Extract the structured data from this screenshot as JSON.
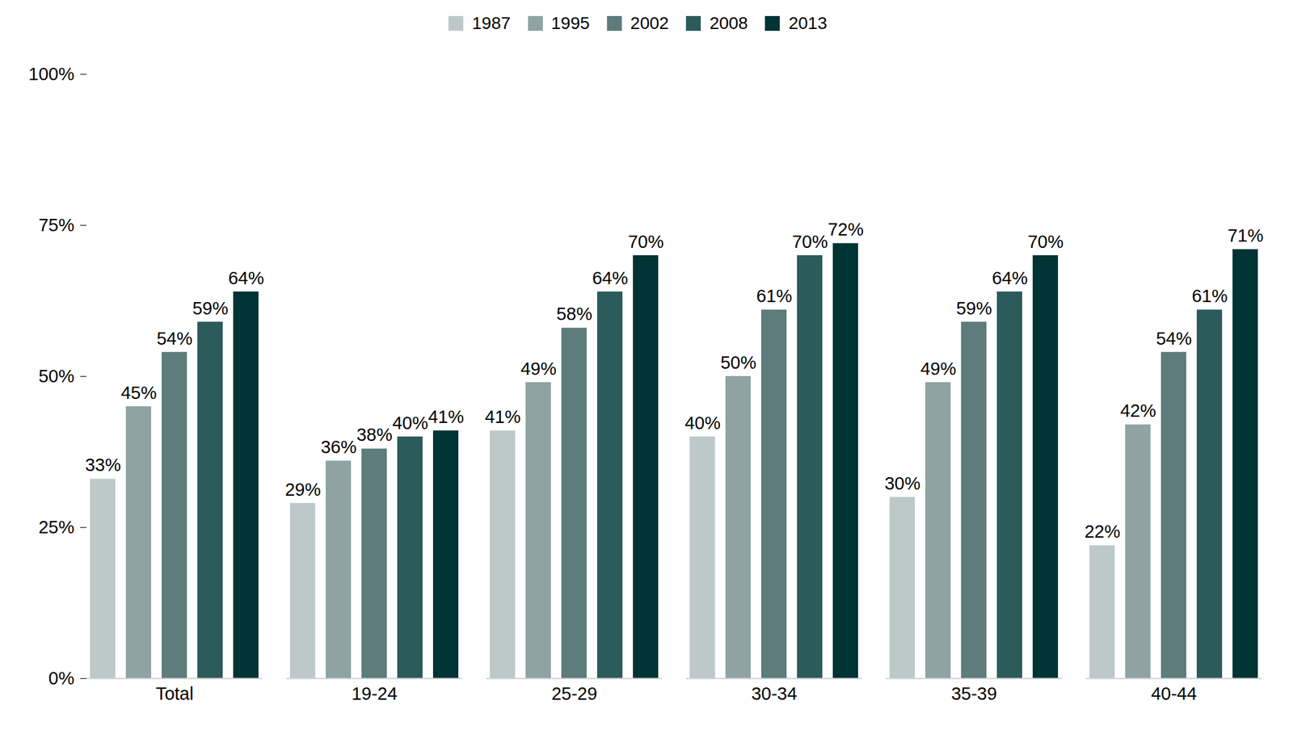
{
  "chart_data": {
    "type": "bar",
    "categories": [
      "Total",
      "19-24",
      "25-29",
      "30-34",
      "35-39",
      "40-44"
    ],
    "series": [
      {
        "name": "1987",
        "color": "#bdc9c9",
        "values": [
          33,
          29,
          41,
          40,
          30,
          22
        ],
        "value_labels": [
          "33%",
          "29%",
          "41%",
          "40%",
          "30%",
          "22%"
        ]
      },
      {
        "name": "1995",
        "color": "#8fa3a2",
        "values": [
          45,
          36,
          49,
          50,
          49,
          42
        ],
        "value_labels": [
          "45%",
          "36%",
          "49%",
          "50%",
          "49%",
          "42%"
        ]
      },
      {
        "name": "2002",
        "color": "#5d7c7b",
        "values": [
          54,
          38,
          58,
          61,
          59,
          54
        ],
        "value_labels": [
          "54%",
          "38%",
          "58%",
          "61%",
          "59%",
          "54%"
        ]
      },
      {
        "name": "2008",
        "color": "#2c5b5b",
        "values": [
          59,
          40,
          64,
          70,
          64,
          61
        ],
        "value_labels": [
          "59%",
          "40%",
          "64%",
          "70%",
          "64%",
          "61%"
        ]
      },
      {
        "name": "2013",
        "color": "#003333",
        "values": [
          64,
          41,
          70,
          72,
          70,
          71
        ],
        "value_labels": [
          "64%",
          "41%",
          "70%",
          "72%",
          "70%",
          "71%"
        ]
      }
    ],
    "ylim": [
      0,
      100
    ],
    "yticks": [
      {
        "value": 0,
        "label": "0%"
      },
      {
        "value": 25,
        "label": "25%"
      },
      {
        "value": 50,
        "label": "50%"
      },
      {
        "value": 75,
        "label": "75%"
      },
      {
        "value": 100,
        "label": "100%"
      }
    ],
    "legend": "top",
    "data_labels": true,
    "grid": false
  }
}
